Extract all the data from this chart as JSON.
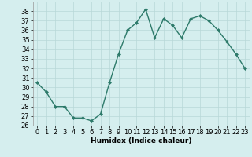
{
  "x": [
    0,
    1,
    2,
    3,
    4,
    5,
    6,
    7,
    8,
    9,
    10,
    11,
    12,
    13,
    14,
    15,
    16,
    17,
    18,
    19,
    20,
    21,
    22,
    23
  ],
  "y": [
    30.5,
    29.5,
    28.0,
    28.0,
    26.8,
    26.8,
    26.5,
    27.2,
    30.5,
    33.5,
    36.0,
    36.8,
    38.2,
    35.2,
    37.2,
    36.5,
    35.2,
    37.2,
    37.5,
    37.0,
    36.0,
    34.8,
    33.5,
    32.0
  ],
  "line_color": "#2d7a6a",
  "marker": "D",
  "marker_size": 2.0,
  "bg_color": "#d5eeee",
  "grid_color": "#b8d8d8",
  "xlabel": "Humidex (Indice chaleur)",
  "xlim": [
    -0.5,
    23.5
  ],
  "ylim": [
    26,
    39
  ],
  "yticks": [
    26,
    27,
    28,
    29,
    30,
    31,
    32,
    33,
    34,
    35,
    36,
    37,
    38
  ],
  "xticks": [
    0,
    1,
    2,
    3,
    4,
    5,
    6,
    7,
    8,
    9,
    10,
    11,
    12,
    13,
    14,
    15,
    16,
    17,
    18,
    19,
    20,
    21,
    22,
    23
  ],
  "xlabel_fontsize": 6.5,
  "tick_fontsize": 6.0,
  "linewidth": 1.0
}
